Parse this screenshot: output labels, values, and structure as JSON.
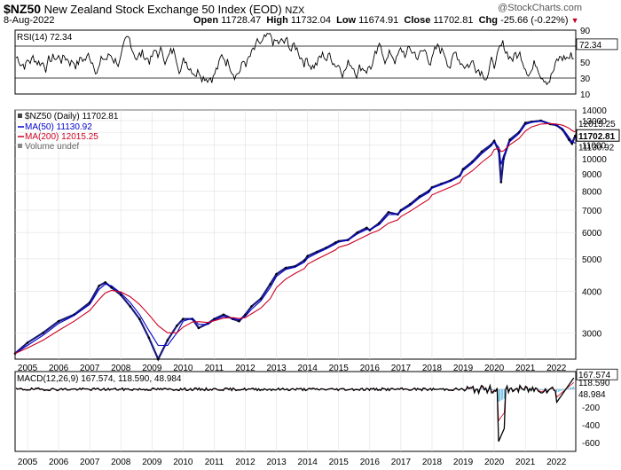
{
  "header": {
    "symbol": "$NZ50",
    "name": "New Zealand Stock Exchange 50 Index (EOD)",
    "exchange": "NZX",
    "date": "8-Aug-2022",
    "watermark": "@StockCharts.com",
    "open_label": "Open",
    "open": "11728.47",
    "high_label": "High",
    "high": "11732.04",
    "low_label": "Low",
    "low": "11674.91",
    "close_label": "Close",
    "close": "11702.81",
    "chg_label": "Chg",
    "chg": "-25.66 (-0.22%)"
  },
  "colors": {
    "price": "#000000",
    "bar": "#1a1a7a",
    "ma50": "#0000cc",
    "ma200": "#cc0022",
    "macd": "#000000",
    "signal": "#cc0022",
    "hist": "#33aadd",
    "panel_bg": "#ffffff",
    "grid": "#e0e0e0"
  },
  "chart_data": [
    {
      "type": "line",
      "panel": "rsi",
      "legend": "RSI(14) 72.34",
      "value": 72.34,
      "value_label": "72.34",
      "ylim": [
        10,
        90
      ],
      "y_ticks": [
        "90",
        "70",
        "50",
        "30",
        "10"
      ],
      "reference_lines": [
        30,
        70
      ]
    },
    {
      "type": "line",
      "panel": "price",
      "legend": [
        {
          "label": "$NZ50 (Daily) 11702.81"
        },
        {
          "label": "MA(50) 11130.92"
        },
        {
          "label": "MA(200) 12015.25"
        },
        {
          "label": "Volume undef"
        }
      ],
      "scale": "log",
      "ylim": [
        2500,
        14000
      ],
      "y_ticks": [
        "14000",
        "13000",
        "12000",
        "11000",
        "10000",
        "9000",
        "8000",
        "7000",
        "6000",
        "5000",
        "4000",
        "3000"
      ],
      "last_labels": {
        "close": "11702.81",
        "ma50": "11130.92",
        "ma200": "12015.25"
      },
      "x_ticks": [
        "2005",
        "2006",
        "2007",
        "2008",
        "2009",
        "2010",
        "2011",
        "2012",
        "2013",
        "2014",
        "2015",
        "2016",
        "2017",
        "2018",
        "2019",
        "2020",
        "2021",
        "2022"
      ],
      "x": [
        2004.6,
        2005.0,
        2005.5,
        2006.0,
        2006.5,
        2007.0,
        2007.3,
        2007.5,
        2007.7,
        2008.0,
        2008.3,
        2008.6,
        2008.9,
        2009.2,
        2009.5,
        2009.8,
        2010.0,
        2010.3,
        2010.5,
        2010.8,
        2011.0,
        2011.3,
        2011.6,
        2011.8,
        2012.0,
        2012.2,
        2012.5,
        2012.8,
        2013.0,
        2013.3,
        2013.6,
        2013.9,
        2014.0,
        2014.3,
        2014.6,
        2014.9,
        2015.0,
        2015.3,
        2015.6,
        2015.9,
        2016.0,
        2016.3,
        2016.6,
        2016.9,
        2017.0,
        2017.3,
        2017.6,
        2017.9,
        2018.0,
        2018.3,
        2018.6,
        2018.9,
        2019.0,
        2019.3,
        2019.6,
        2019.9,
        2020.0,
        2020.15,
        2020.22,
        2020.3,
        2020.5,
        2020.8,
        2021.0,
        2021.2,
        2021.5,
        2021.8,
        2022.0,
        2022.2,
        2022.4,
        2022.5,
        2022.6
      ],
      "series": [
        {
          "name": "$NZ50",
          "values": [
            2600,
            2800,
            3000,
            3250,
            3400,
            3700,
            4150,
            4250,
            4100,
            3900,
            3600,
            3300,
            2900,
            2500,
            2850,
            3150,
            3300,
            3300,
            3100,
            3200,
            3300,
            3400,
            3300,
            3250,
            3400,
            3600,
            3800,
            4200,
            4500,
            4700,
            4750,
            4950,
            5100,
            5250,
            5400,
            5600,
            5650,
            5700,
            6000,
            6200,
            6100,
            6400,
            6900,
            6800,
            7000,
            7300,
            7700,
            8000,
            8200,
            8400,
            8600,
            8900,
            9300,
            9800,
            10500,
            11000,
            11300,
            10500,
            8500,
            10000,
            11400,
            12000,
            12800,
            12900,
            13000,
            12700,
            12600,
            12200,
            11400,
            11100,
            11703
          ]
        },
        {
          "name": "MA(50)",
          "values": [
            2600,
            2750,
            2950,
            3200,
            3380,
            3650,
            4050,
            4200,
            4150,
            3950,
            3700,
            3400,
            3050,
            2750,
            2750,
            3000,
            3250,
            3320,
            3180,
            3180,
            3280,
            3360,
            3310,
            3280,
            3360,
            3530,
            3740,
            4100,
            4430,
            4650,
            4720,
            4890,
            5030,
            5200,
            5360,
            5540,
            5620,
            5690,
            5940,
            6130,
            6120,
            6330,
            6790,
            6800,
            6950,
            7230,
            7620,
            7920,
            8150,
            8350,
            8550,
            8840,
            9200,
            9700,
            10350,
            10900,
            11220,
            10800,
            9600,
            10200,
            11250,
            11900,
            12650,
            12850,
            12950,
            12750,
            12620,
            12300,
            11600,
            11250,
            11131
          ]
        },
        {
          "name": "MA(200)",
          "values": [
            2600,
            2700,
            2850,
            3050,
            3250,
            3500,
            3780,
            3950,
            4020,
            3980,
            3850,
            3650,
            3400,
            3150,
            3000,
            3000,
            3120,
            3230,
            3240,
            3220,
            3260,
            3320,
            3330,
            3310,
            3330,
            3420,
            3560,
            3800,
            4100,
            4350,
            4520,
            4680,
            4820,
            4990,
            5150,
            5320,
            5420,
            5520,
            5700,
            5880,
            5950,
            6100,
            6400,
            6550,
            6700,
            6950,
            7250,
            7550,
            7780,
            8000,
            8220,
            8480,
            8800,
            9200,
            9750,
            10250,
            10650,
            10750,
            10500,
            10550,
            11000,
            11500,
            12100,
            12450,
            12700,
            12750,
            12700,
            12600,
            12350,
            12150,
            12015
          ]
        }
      ]
    },
    {
      "type": "line",
      "panel": "macd",
      "legend": "MACD(12,26,9) 167.574, 118.590, 48.984",
      "macd": 167.574,
      "signal": 118.59,
      "histogram": 48.984,
      "ylim": [
        -700,
        200
      ],
      "y_ticks": [
        "167.574",
        "118.590",
        "48.984",
        "-200",
        "-400",
        "-600"
      ],
      "x_ticks": [
        "2005",
        "2006",
        "2007",
        "2008",
        "2009",
        "2010",
        "2011",
        "2012",
        "2013",
        "2014",
        "2015",
        "2016",
        "2017",
        "2018",
        "2019",
        "2020",
        "2021",
        "2022"
      ]
    }
  ]
}
